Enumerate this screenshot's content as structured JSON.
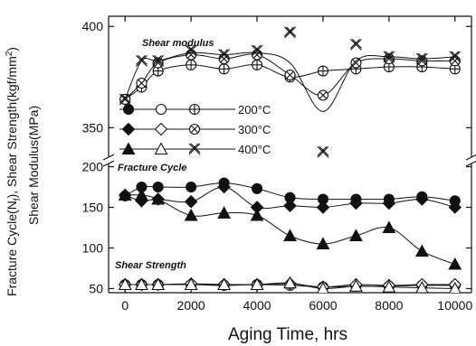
{
  "chart_data": {
    "type": "line",
    "xlabel": "Aging Time, hrs",
    "ylabel_left": "Fracture Cycle(N",
    "ylabel_left_sub": "f",
    "ylabel_left_tail": "), Shear Strength(kgf/mm",
    "ylabel_left_sup": "2",
    "ylabel_left_end": ")",
    "ylabel_right": "Shear Modulus(MPa)",
    "xlim": [
      -500,
      10500
    ],
    "xticks": [
      0,
      2000,
      4000,
      6000,
      8000,
      10000
    ],
    "axis_break": true,
    "upper_ylim": [
      335,
      405
    ],
    "upper_yticks": [
      350,
      400
    ],
    "lower_ylim": [
      45,
      205
    ],
    "lower_yticks": [
      50,
      100,
      150,
      200
    ],
    "annotations": [
      "Shear modulus",
      "Fracture Cycle",
      "Shear Strength"
    ],
    "legend": {
      "placement": "center-left",
      "entries": [
        {
          "label": "200°C",
          "temp": "200"
        },
        {
          "label": "300°C",
          "temp": "300"
        },
        {
          "label": "400°C",
          "temp": "400"
        }
      ]
    },
    "series": [
      {
        "group": "shear_modulus",
        "temp": "200",
        "marker": "circle-plus",
        "x": [
          0,
          500,
          1000,
          2000,
          3000,
          4000,
          5000,
          6000,
          7000,
          8000,
          9000,
          10000
        ],
        "y": [
          364,
          370,
          378,
          381,
          379,
          381,
          375,
          378,
          379,
          380,
          380,
          379
        ]
      },
      {
        "group": "shear_modulus",
        "temp": "300",
        "marker": "circle-x",
        "x": [
          0,
          500,
          1000,
          2000,
          3000,
          4000,
          5000,
          6000,
          7000,
          8000,
          9000,
          10000
        ],
        "y": [
          364,
          372,
          382,
          386,
          384,
          386,
          376,
          366,
          382,
          384,
          383,
          383
        ]
      },
      {
        "group": "shear_modulus",
        "temp": "400",
        "marker": "x",
        "x": [
          0,
          500,
          1000,
          2000,
          3000,
          4000,
          5000,
          6000,
          7000,
          8000,
          9000,
          10000
        ],
        "y": [
          364,
          383,
          383,
          388,
          386,
          388,
          397,
          338,
          391,
          385,
          384,
          385
        ],
        "line_y": [
          364,
          383,
          383,
          387,
          386,
          387,
          382,
          358,
          383,
          385,
          384,
          385
        ]
      },
      {
        "group": "fracture_cycle",
        "temp": "200",
        "marker": "filled-circle",
        "x": [
          0,
          500,
          1000,
          2000,
          3000,
          4000,
          5000,
          6000,
          7000,
          8000,
          9000,
          10000
        ],
        "y": [
          164,
          175,
          175,
          175,
          180,
          173,
          162,
          160,
          160,
          160,
          163,
          158
        ]
      },
      {
        "group": "fracture_cycle",
        "temp": "300",
        "marker": "filled-diamond",
        "x": [
          0,
          500,
          1000,
          2000,
          3000,
          4000,
          5000,
          6000,
          7000,
          8000,
          9000,
          10000
        ],
        "y": [
          165,
          158,
          160,
          157,
          175,
          150,
          152,
          150,
          155,
          155,
          160,
          150
        ]
      },
      {
        "group": "fracture_cycle",
        "temp": "400",
        "marker": "filled-triangle",
        "x": [
          0,
          500,
          1000,
          2000,
          3000,
          4000,
          5000,
          6000,
          7000,
          8000,
          9000,
          10000
        ],
        "y": [
          165,
          165,
          160,
          140,
          143,
          140,
          115,
          105,
          115,
          125,
          96,
          80
        ]
      },
      {
        "group": "shear_strength",
        "temp": "200",
        "marker": "open-circle",
        "x": [
          0,
          500,
          1000,
          2000,
          3000,
          4000,
          5000,
          6000,
          7000,
          8000,
          9000,
          10000
        ],
        "y": [
          55,
          55,
          55,
          55,
          54,
          55,
          54,
          52,
          53,
          53,
          54,
          54
        ]
      },
      {
        "group": "shear_strength",
        "temp": "300",
        "marker": "open-diamond",
        "x": [
          0,
          500,
          1000,
          2000,
          3000,
          4000,
          5000,
          6000,
          7000,
          8000,
          9000,
          10000
        ],
        "y": [
          55,
          55,
          55,
          56,
          55,
          55,
          56,
          52,
          55,
          54,
          55,
          55
        ]
      },
      {
        "group": "shear_strength",
        "temp": "400",
        "marker": "open-triangle",
        "x": [
          0,
          500,
          1000,
          2000,
          3000,
          4000,
          5000,
          6000,
          7000,
          8000,
          9000,
          10000
        ],
        "y": [
          55,
          55,
          55,
          55,
          55,
          55,
          57,
          50,
          53,
          52,
          51,
          50
        ]
      }
    ]
  }
}
